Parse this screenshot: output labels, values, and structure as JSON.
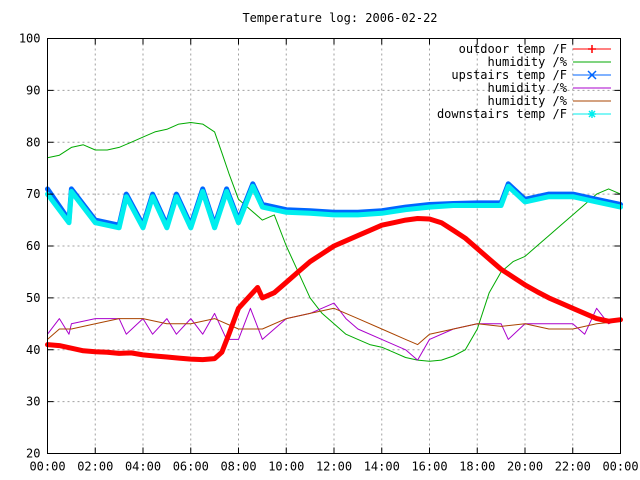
{
  "chart_data": {
    "type": "line",
    "title": "Temperature log: 2006-02-22",
    "xlabel": "",
    "ylabel": "",
    "x_tick_labels": [
      "00:00",
      "02:00",
      "04:00",
      "06:00",
      "08:00",
      "10:00",
      "12:00",
      "14:00",
      "16:00",
      "18:00",
      "20:00",
      "22:00",
      "00:00"
    ],
    "x_range_hours": [
      0,
      24
    ],
    "ylim": [
      20,
      100
    ],
    "y_ticks": [
      20,
      30,
      40,
      50,
      60,
      70,
      80,
      90,
      100
    ],
    "grid": true,
    "legend_position": "top-right",
    "series": [
      {
        "name": "outdoor temp /F",
        "color": "#ff0000",
        "marker": "plus",
        "x": [
          0,
          0.5,
          1,
          1.5,
          2,
          2.5,
          3,
          3.5,
          4,
          4.5,
          5,
          5.5,
          6,
          6.5,
          7,
          7.3,
          7.6,
          8,
          8.5,
          8.8,
          9,
          9.5,
          10,
          10.5,
          11,
          11.5,
          12,
          12.5,
          13,
          13.5,
          14,
          14.5,
          15,
          15.5,
          16,
          16.5,
          17,
          17.5,
          18,
          18.5,
          19,
          19.5,
          20,
          20.5,
          21,
          21.5,
          22,
          22.5,
          23,
          23.5,
          24
        ],
        "values": [
          41,
          40.8,
          40.3,
          39.8,
          39.6,
          39.5,
          39.3,
          39.4,
          39,
          38.8,
          38.6,
          38.4,
          38.2,
          38.1,
          38.3,
          39.5,
          43,
          48,
          50.5,
          52,
          50,
          51,
          53,
          55,
          57,
          58.5,
          60,
          61,
          62,
          63,
          64,
          64.5,
          65,
          65.3,
          65.2,
          64.5,
          63,
          61.5,
          59.5,
          57.5,
          55.5,
          54,
          52.5,
          51.2,
          50,
          49,
          48,
          47,
          46,
          45.5,
          45.8
        ]
      },
      {
        "name": "humidity /%",
        "color": "#00aa00",
        "x": [
          0,
          0.5,
          1,
          1.5,
          2,
          2.5,
          3,
          3.5,
          4,
          4.5,
          5,
          5.5,
          6,
          6.5,
          7,
          7.3,
          7.6,
          8,
          8.5,
          9,
          9.5,
          10,
          10.5,
          11,
          11.5,
          12,
          12.5,
          13,
          13.5,
          14,
          14.5,
          15,
          15.5,
          16,
          16.5,
          17,
          17.5,
          18,
          18.5,
          19,
          19.5,
          20,
          20.5,
          21,
          21.5,
          22,
          22.5,
          23,
          23.5,
          24
        ],
        "values": [
          77,
          77.5,
          79,
          79.5,
          78.5,
          78.5,
          79,
          80,
          81,
          82,
          82.5,
          83.5,
          83.8,
          83.5,
          82,
          78,
          74,
          69,
          67,
          65,
          66,
          60,
          55,
          50,
          47,
          45,
          43,
          42,
          41,
          40.5,
          39.5,
          38.5,
          38,
          37.8,
          38,
          38.8,
          40,
          44,
          51,
          55,
          57,
          58,
          60,
          62,
          64,
          66,
          68,
          70,
          71,
          70
        ]
      },
      {
        "name": "upstairs temp /F",
        "color": "#0066ff",
        "marker": "cross",
        "x": [
          0,
          0.9,
          1,
          2,
          3,
          3.3,
          4,
          4.4,
          5,
          5.4,
          6,
          6.5,
          7,
          7.5,
          8,
          8.6,
          9,
          9.5,
          10,
          11,
          12,
          13,
          14,
          15,
          16,
          17,
          18,
          19,
          19.3,
          20,
          21,
          22,
          23,
          24
        ],
        "values": [
          71,
          65,
          71,
          65,
          64,
          70,
          64,
          70,
          64,
          70,
          64,
          71,
          64,
          71,
          65,
          72,
          68,
          67.5,
          67,
          66.8,
          66.5,
          66.5,
          66.8,
          67.5,
          68,
          68.2,
          68.3,
          68.3,
          72,
          69,
          70,
          70,
          69,
          68
        ]
      },
      {
        "name": "humidity /%",
        "color": "#aa00cc",
        "x": [
          0,
          0.5,
          0.9,
          1,
          2,
          3,
          3.3,
          4,
          4.4,
          5,
          5.4,
          6,
          6.5,
          7,
          7.5,
          8,
          8.5,
          9,
          9.5,
          10,
          11,
          12,
          12.5,
          13,
          14,
          15,
          15.5,
          16,
          17,
          18,
          19,
          19.3,
          20,
          21,
          22,
          22.5,
          23,
          23.5,
          24
        ],
        "values": [
          43,
          46,
          43,
          45,
          46,
          46,
          43,
          46,
          43,
          46,
          43,
          46,
          43,
          47,
          42,
          42,
          48,
          42,
          44,
          46,
          47,
          49,
          46,
          44,
          42,
          40,
          38,
          42,
          44,
          45,
          45,
          42,
          45,
          45,
          45,
          43,
          48,
          45,
          46
        ]
      },
      {
        "name": "humidity /%",
        "color": "#aa4400",
        "x": [
          0,
          0.5,
          1,
          2,
          3,
          4,
          5,
          6,
          7,
          8,
          9,
          10,
          11,
          12,
          13,
          14,
          15,
          15.5,
          16,
          17,
          18,
          19,
          20,
          21,
          22,
          23,
          24
        ],
        "values": [
          42,
          44,
          44,
          45,
          46,
          46,
          45,
          45,
          46,
          44,
          44,
          46,
          47,
          48,
          46,
          44,
          42,
          41,
          43,
          44,
          45,
          44.5,
          45,
          44,
          44,
          45,
          45.5
        ]
      },
      {
        "name": "downstairs temp /F",
        "color": "#00eeee",
        "marker": "star",
        "x": [
          0,
          0.9,
          1,
          2,
          3,
          3.3,
          4,
          4.4,
          5,
          5.4,
          6,
          6.5,
          7,
          7.5,
          8,
          8.6,
          9,
          9.5,
          10,
          11,
          12,
          13,
          14,
          15,
          16,
          17,
          18,
          19,
          19.3,
          20,
          21,
          22,
          23,
          24
        ],
        "values": [
          70,
          64.5,
          70.5,
          64.5,
          63.5,
          69.5,
          63.5,
          69.5,
          63.5,
          69.5,
          63.5,
          70.5,
          63.5,
          70.5,
          64.5,
          71.5,
          67.5,
          67,
          66.5,
          66.3,
          66,
          66,
          66.3,
          67,
          67.5,
          67.8,
          67.8,
          67.8,
          71.5,
          68.5,
          69.5,
          69.5,
          68.5,
          67.5
        ]
      }
    ]
  }
}
